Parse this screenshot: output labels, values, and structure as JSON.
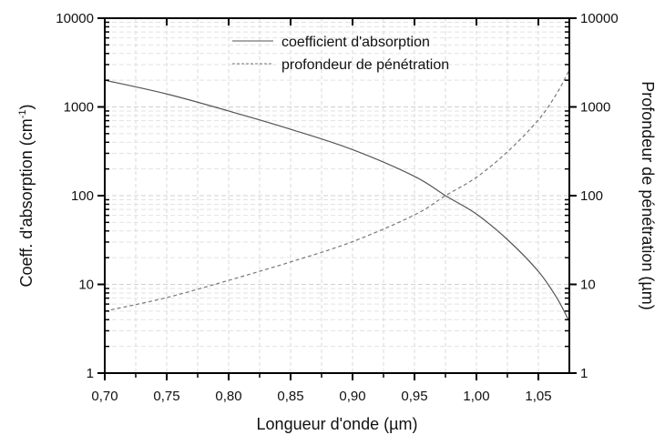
{
  "chart_data": {
    "type": "line",
    "xlabel": "Longueur d'onde (µm)",
    "ylabel": {
      "main": "Coeff. d'absorption (cm",
      "sup": "-1",
      "close": ")"
    },
    "y2label": "Profondeur de pénétration (µm)",
    "xlim": [
      0.7,
      1.075
    ],
    "ylim": [
      1,
      10000
    ],
    "y2lim": [
      1,
      10000
    ],
    "yscale": "log",
    "grid": true,
    "legend_position": "top-center",
    "x_ticks": [
      "0,70",
      "0,75",
      "0,80",
      "0,85",
      "0,90",
      "0,95",
      "1,00",
      "1,05"
    ],
    "x_tick_values": [
      0.7,
      0.75,
      0.8,
      0.85,
      0.9,
      0.95,
      1.0,
      1.05
    ],
    "y_ticks": [
      "1",
      "10",
      "100",
      "1000",
      "10000"
    ],
    "y_tick_values": [
      1,
      10,
      100,
      1000,
      10000
    ],
    "series": [
      {
        "name": "coefficient d'absorption",
        "axis": "left",
        "style": "solid",
        "color": "#555555",
        "x": [
          0.7,
          0.75,
          0.8,
          0.85,
          0.9,
          0.95,
          0.975,
          1.0,
          1.025,
          1.05,
          1.065,
          1.075
        ],
        "y": [
          2000,
          1400,
          900,
          560,
          330,
          165,
          100,
          62,
          32,
          14,
          7,
          3.8
        ]
      },
      {
        "name": "profondeur de pénétration",
        "axis": "right",
        "style": "dashed",
        "color": "#777777",
        "x": [
          0.7,
          0.75,
          0.8,
          0.85,
          0.9,
          0.95,
          0.975,
          1.0,
          1.025,
          1.05,
          1.065,
          1.075
        ],
        "y": [
          5,
          7.1,
          11.1,
          17.9,
          30.3,
          60.6,
          100,
          161,
          312,
          714,
          1430,
          2630
        ]
      }
    ]
  }
}
